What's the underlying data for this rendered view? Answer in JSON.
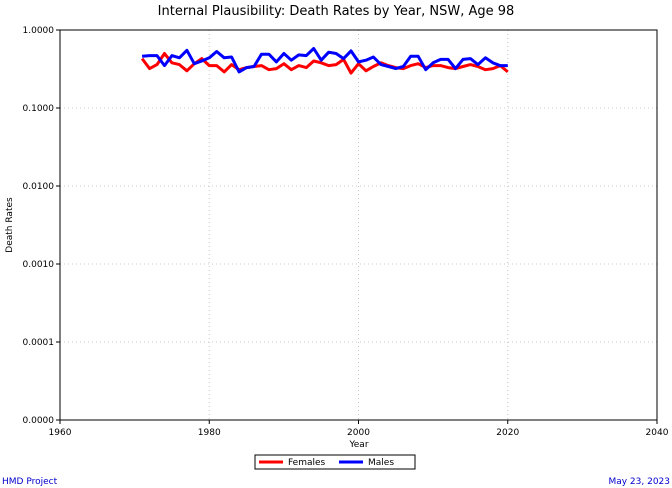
{
  "chart_data": {
    "type": "line",
    "title": "Internal Plausibility: Death Rates by Year, NSW, Age 98",
    "xlabel": "Year",
    "ylabel": "Death Rates",
    "xlim": [
      1960,
      2040
    ],
    "ylim": [
      0.0,
      1.0
    ],
    "yscale": "log",
    "x_ticks": [
      "1960",
      "1980",
      "2000",
      "2020",
      "2040"
    ],
    "y_ticks": [
      "0.0000",
      "0.0001",
      "0.0010",
      "0.0100",
      "0.1000",
      "1.0000"
    ],
    "grid": true,
    "legend_position": "bottom-center",
    "series": [
      {
        "name": "Females",
        "color": "#ff0000",
        "x": [
          1971,
          1972,
          1973,
          1974,
          1975,
          1976,
          1977,
          1978,
          1979,
          1980,
          1981,
          1982,
          1983,
          1984,
          1985,
          1986,
          1987,
          1988,
          1989,
          1990,
          1991,
          1992,
          1993,
          1994,
          1995,
          1996,
          1997,
          1998,
          1999,
          2000,
          2001,
          2002,
          2003,
          2004,
          2005,
          2006,
          2007,
          2008,
          2009,
          2010,
          2011,
          2012,
          2013,
          2014,
          2015,
          2016,
          2017,
          2018,
          2019,
          2020
        ],
        "y": [
          0.43,
          0.32,
          0.36,
          0.5,
          0.38,
          0.36,
          0.3,
          0.37,
          0.43,
          0.35,
          0.35,
          0.29,
          0.36,
          0.31,
          0.33,
          0.34,
          0.35,
          0.31,
          0.32,
          0.37,
          0.31,
          0.35,
          0.33,
          0.4,
          0.38,
          0.35,
          0.36,
          0.42,
          0.28,
          0.37,
          0.3,
          0.34,
          0.38,
          0.35,
          0.33,
          0.32,
          0.35,
          0.37,
          0.33,
          0.35,
          0.35,
          0.33,
          0.32,
          0.34,
          0.36,
          0.34,
          0.31,
          0.32,
          0.35,
          0.29
        ]
      },
      {
        "name": "Males",
        "color": "#0000ff",
        "x": [
          1971,
          1972,
          1973,
          1974,
          1975,
          1976,
          1977,
          1978,
          1979,
          1980,
          1981,
          1982,
          1983,
          1984,
          1985,
          1986,
          1987,
          1988,
          1989,
          1990,
          1991,
          1992,
          1993,
          1994,
          1995,
          1996,
          1997,
          1998,
          1999,
          2000,
          2001,
          2002,
          2003,
          2004,
          2005,
          2006,
          2007,
          2008,
          2009,
          2010,
          2011,
          2012,
          2013,
          2014,
          2015,
          2016,
          2017,
          2018,
          2019,
          2020
        ],
        "y": [
          0.46,
          0.47,
          0.47,
          0.35,
          0.47,
          0.44,
          0.55,
          0.37,
          0.4,
          0.44,
          0.53,
          0.44,
          0.45,
          0.29,
          0.33,
          0.34,
          0.49,
          0.49,
          0.39,
          0.5,
          0.41,
          0.48,
          0.47,
          0.58,
          0.41,
          0.52,
          0.5,
          0.43,
          0.54,
          0.39,
          0.41,
          0.45,
          0.36,
          0.34,
          0.32,
          0.34,
          0.46,
          0.46,
          0.31,
          0.38,
          0.42,
          0.42,
          0.32,
          0.42,
          0.43,
          0.36,
          0.44,
          0.38,
          0.35,
          0.35
        ]
      }
    ]
  },
  "footer": {
    "left": "HMD Project",
    "right": "May 23, 2023"
  }
}
